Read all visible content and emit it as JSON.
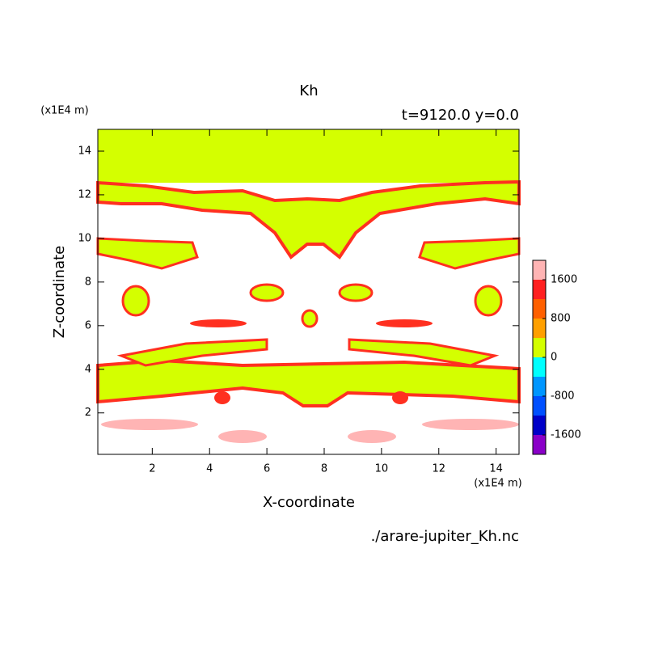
{
  "chart_data": {
    "type": "contour",
    "title": "Kh",
    "subtitle": "t=9120.0 y=0.0",
    "xlabel": "X-coordinate",
    "ylabel": "Z-coordinate",
    "xunit": "(x1E4 m)",
    "yunit": "(x1E4 m)",
    "source": "./arare-jupiter_Kh.nc",
    "xlim": [
      0.1,
      14.8
    ],
    "ylim": [
      0.1,
      15
    ],
    "xticks": [
      2,
      4,
      6,
      8,
      10,
      12,
      14
    ],
    "yticks": [
      2,
      4,
      6,
      8,
      10,
      12,
      14
    ],
    "colorbar": {
      "clim": [
        -2000,
        2000
      ],
      "levels": [
        -2000,
        -1600,
        -1200,
        -800,
        -400,
        0,
        400,
        800,
        1200,
        1600,
        2000
      ],
      "colors": [
        "#8a00c8",
        "#0000c8",
        "#0050ff",
        "#0096ff",
        "#00ffff",
        "#d4ff00",
        "#ffa000",
        "#ff6000",
        "#ff2020",
        "#ffb4b4"
      ],
      "ticks": [
        -1600,
        -800,
        0,
        800,
        1600
      ]
    }
  }
}
